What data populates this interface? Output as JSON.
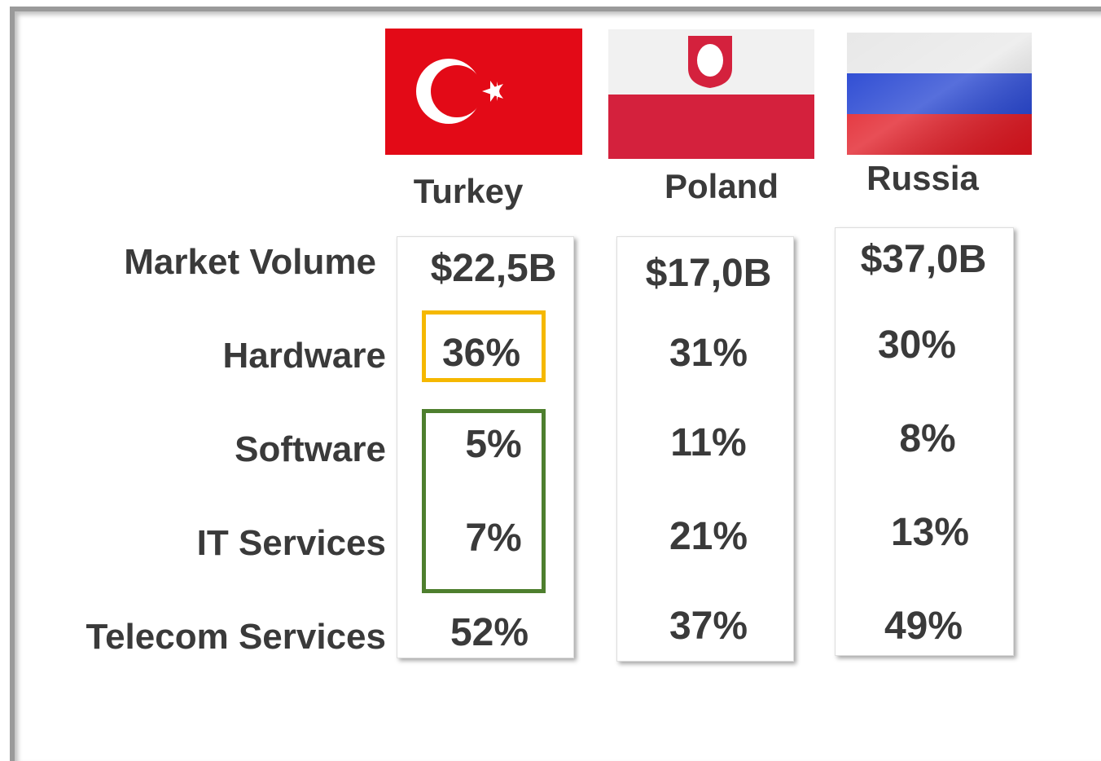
{
  "countries": [
    {
      "name": "Turkey",
      "values": [
        "$22,5B",
        "36%",
        "5%",
        "7%",
        "52%"
      ]
    },
    {
      "name": "Poland",
      "values": [
        "$17,0B",
        "31%",
        "11%",
        "21%",
        "37%"
      ]
    },
    {
      "name": "Russia",
      "values": [
        "$37,0B",
        "30%",
        "8%",
        "13%",
        "49%"
      ]
    }
  ],
  "row_labels": [
    "Market Volume",
    "Hardware",
    "Software",
    "IT Services",
    "Telecom Services"
  ]
}
